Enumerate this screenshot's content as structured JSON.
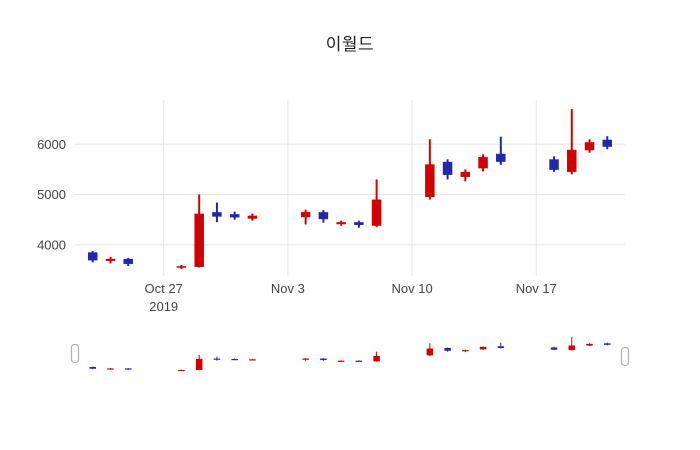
{
  "title": "이월드",
  "chart_data": {
    "type": "candlestick",
    "title": "이월드",
    "increasing_color": "#d40000",
    "decreasing_color": "#2127b0",
    "grid_color": "#e6e6e6",
    "y_ticks": [
      4000,
      5000,
      6000
    ],
    "y_range": [
      3380,
      6880
    ],
    "x_range": [
      "2019-10-22",
      "2019-11-22"
    ],
    "x_ticks": [
      {
        "date": "2019-10-27",
        "label": "Oct 27",
        "sublabel": "2019"
      },
      {
        "date": "2019-11-03",
        "label": "Nov 3",
        "sublabel": ""
      },
      {
        "date": "2019-11-10",
        "label": "Nov 10",
        "sublabel": ""
      },
      {
        "date": "2019-11-17",
        "label": "Nov 17",
        "sublabel": ""
      }
    ],
    "candles": [
      {
        "date": "2019-10-23",
        "open": 3850,
        "high": 3880,
        "low": 3650,
        "close": 3690
      },
      {
        "date": "2019-10-24",
        "open": 3680,
        "high": 3760,
        "low": 3630,
        "close": 3720
      },
      {
        "date": "2019-10-25",
        "open": 3720,
        "high": 3740,
        "low": 3580,
        "close": 3620
      },
      {
        "date": "2019-10-28",
        "open": 3545,
        "high": 3600,
        "low": 3520,
        "close": 3575
      },
      {
        "date": "2019-10-29",
        "open": 3560,
        "high": 5000,
        "low": 3550,
        "close": 4620
      },
      {
        "date": "2019-10-30",
        "open": 4650,
        "high": 4840,
        "low": 4450,
        "close": 4560
      },
      {
        "date": "2019-10-31",
        "open": 4610,
        "high": 4660,
        "low": 4500,
        "close": 4545
      },
      {
        "date": "2019-11-01",
        "open": 4520,
        "high": 4620,
        "low": 4480,
        "close": 4580
      },
      {
        "date": "2019-11-04",
        "open": 4550,
        "high": 4700,
        "low": 4405,
        "close": 4650
      },
      {
        "date": "2019-11-05",
        "open": 4650,
        "high": 4690,
        "low": 4440,
        "close": 4510
      },
      {
        "date": "2019-11-06",
        "open": 4410,
        "high": 4480,
        "low": 4380,
        "close": 4450
      },
      {
        "date": "2019-11-07",
        "open": 4450,
        "high": 4480,
        "low": 4340,
        "close": 4395
      },
      {
        "date": "2019-11-08",
        "open": 4380,
        "high": 5300,
        "low": 4350,
        "close": 4900
      },
      {
        "date": "2019-11-11",
        "open": 4950,
        "high": 6100,
        "low": 4900,
        "close": 5600
      },
      {
        "date": "2019-11-12",
        "open": 5650,
        "high": 5700,
        "low": 5300,
        "close": 5390
      },
      {
        "date": "2019-11-13",
        "open": 5350,
        "high": 5500,
        "low": 5260,
        "close": 5450
      },
      {
        "date": "2019-11-14",
        "open": 5520,
        "high": 5800,
        "low": 5460,
        "close": 5745
      },
      {
        "date": "2019-11-15",
        "open": 5810,
        "high": 6150,
        "low": 5590,
        "close": 5650
      },
      {
        "date": "2019-11-18",
        "open": 5700,
        "high": 5760,
        "low": 5450,
        "close": 5490
      },
      {
        "date": "2019-11-19",
        "open": 5450,
        "high": 6700,
        "low": 5400,
        "close": 5890
      },
      {
        "date": "2019-11-20",
        "open": 5880,
        "high": 6100,
        "low": 5830,
        "close": 6040
      },
      {
        "date": "2019-11-21",
        "open": 6090,
        "high": 6160,
        "low": 5900,
        "close": 5950
      }
    ]
  }
}
